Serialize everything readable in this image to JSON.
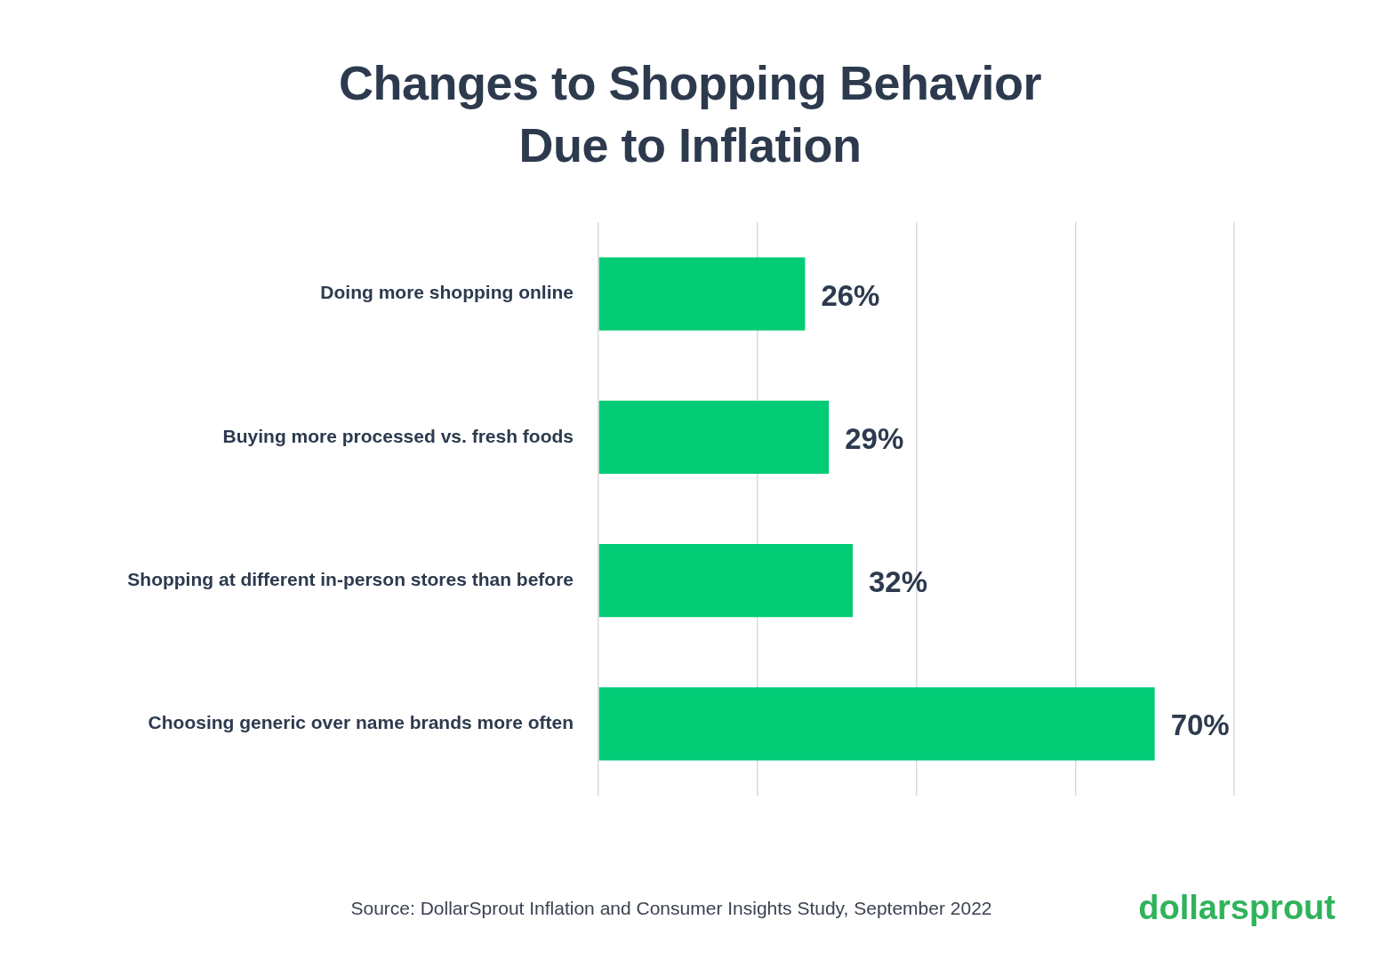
{
  "chart_data": {
    "type": "bar",
    "orientation": "horizontal",
    "title": [
      "Changes to Shopping Behavior",
      "Due to Inflation"
    ],
    "categories": [
      "Doing more shopping online",
      "Buying more processed vs. fresh foods",
      "Shopping at different in-person stores than before",
      "Choosing generic over name brands more often"
    ],
    "values": [
      26,
      29,
      32,
      70
    ],
    "value_labels": [
      "26%",
      "29%",
      "32%",
      "70%"
    ],
    "data_labels": true,
    "color": "#02cb76",
    "xlim": [
      0,
      80
    ],
    "xticks": [
      0,
      20,
      40,
      60,
      80
    ],
    "grid": true,
    "tick_labels": "y",
    "source": "Source: DollarSprout Inflation and Consumer Insights Study, September 2022",
    "logo": "dollarsprout"
  }
}
